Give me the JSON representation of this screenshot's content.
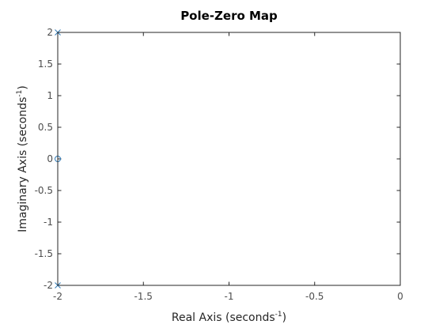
{
  "chart_data": {
    "type": "scatter",
    "title": "Pole-Zero Map",
    "xlabel": {
      "main": "Real Axis (seconds",
      "superscript": "-1",
      "close": ")"
    },
    "ylabel": {
      "main": "Imaginary Axis (seconds",
      "superscript": "-1",
      "close": ")"
    },
    "xlim": [
      -2,
      0
    ],
    "ylim": [
      -2,
      2
    ],
    "xticks": [
      {
        "value": -2,
        "label": "-2"
      },
      {
        "value": -1.5,
        "label": "-1.5"
      },
      {
        "value": -1,
        "label": "-1"
      },
      {
        "value": -0.5,
        "label": "-0.5"
      },
      {
        "value": 0,
        "label": "0"
      }
    ],
    "yticks": [
      {
        "value": 2,
        "label": "2"
      },
      {
        "value": 1.5,
        "label": "1.5"
      },
      {
        "value": 1,
        "label": "1"
      },
      {
        "value": 0.5,
        "label": "0.5"
      },
      {
        "value": 0,
        "label": "0"
      },
      {
        "value": -0.5,
        "label": "-0.5"
      },
      {
        "value": -1,
        "label": "-1"
      },
      {
        "value": -1.5,
        "label": "-1.5"
      },
      {
        "value": -2,
        "label": "-2"
      }
    ],
    "grid": false,
    "series": [
      {
        "marker": "x",
        "color": "#2e7ab8",
        "points": [
          {
            "x": -2,
            "y": 2
          },
          {
            "x": -2,
            "y": -2
          }
        ]
      },
      {
        "marker": "o",
        "color": "#2e7ab8",
        "points": [
          {
            "x": -2,
            "y": 0
          }
        ]
      }
    ],
    "colors": {
      "axis": "#262626",
      "tick_label": "#4d4d4d",
      "title": "#000000",
      "marker": "#2e7ab8"
    }
  }
}
